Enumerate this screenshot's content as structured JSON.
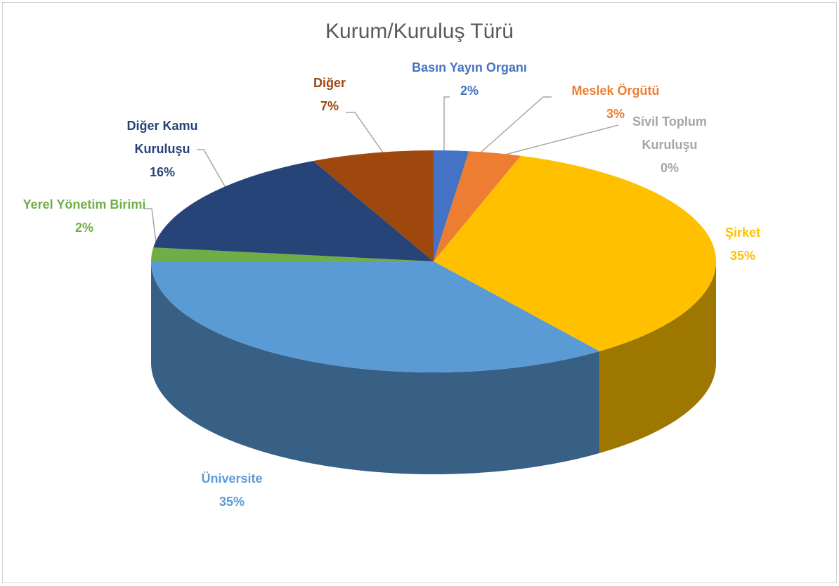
{
  "chart_data": {
    "type": "pie",
    "title": "Kurum/Kuruluş Türü",
    "categories": [
      "Basın Yayın Organı",
      "Meslek Örgütü",
      "Sivil Toplum Kuruluşu",
      "Şirket",
      "Üniversite",
      "Yerel Yönetim Birimi",
      "Diğer Kamu Kuruluşu",
      "Diğer"
    ],
    "values": [
      2,
      3,
      0,
      35,
      35,
      2,
      16,
      7
    ],
    "value_labels": [
      "2%",
      "3%",
      "0%",
      "35%",
      "35%",
      "2%",
      "16%",
      "7%"
    ],
    "colors": [
      "#4472c4",
      "#ed7d31",
      "#a5a5a5",
      "#ffc000",
      "#5b9bd5",
      "#70ad47",
      "#264478",
      "#9e480e"
    ]
  }
}
